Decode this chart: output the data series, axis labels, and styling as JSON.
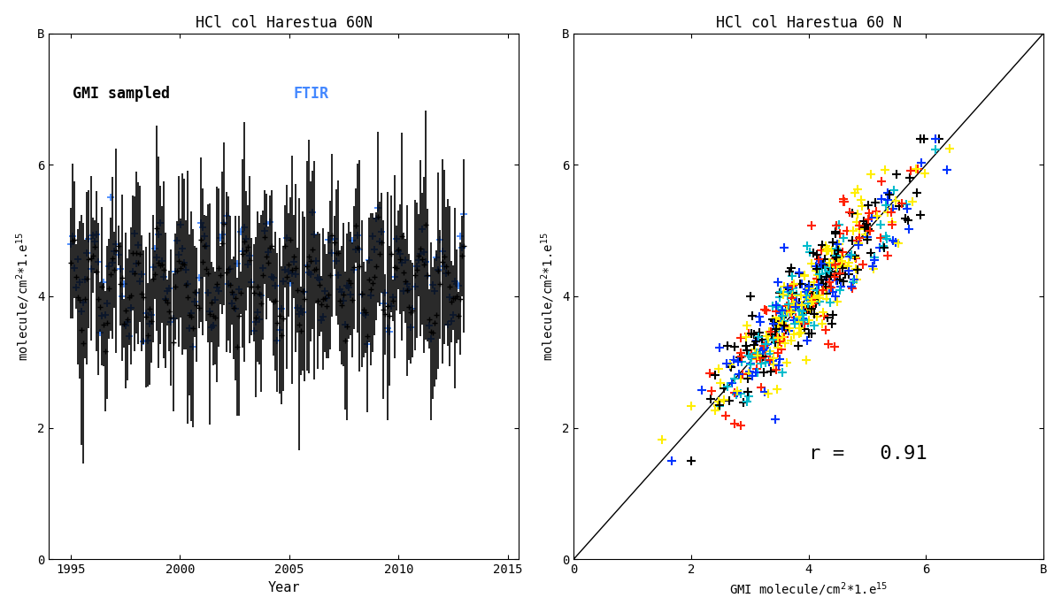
{
  "title_left": "HCl col Harestua 60N",
  "title_right": "HCl col Harestua 60 N",
  "ylabel": "molecule/cm$^2$*1.e$^{15}$",
  "xlabel_left": "Year",
  "xlabel_right": "GMI molecule/cm$^2$*1.e$^{15}$",
  "xlim_left": [
    1994.0,
    2015.5
  ],
  "ylim": [
    0,
    8
  ],
  "xlim_right": [
    0,
    8
  ],
  "xticks_left": [
    1995,
    2000,
    2005,
    2010,
    2015
  ],
  "yticks": [
    0,
    2,
    4,
    6,
    8
  ],
  "ytick_labels": [
    "0",
    "2",
    "4",
    "6",
    "B"
  ],
  "xtick_labels_right": [
    "0",
    "2",
    "4",
    "6",
    "B"
  ],
  "legend_gmi_label": "GMI sampled",
  "legend_ftir_label": "FTIR",
  "legend_gmi_color": "#000000",
  "legend_ftir_color": "#4488ff",
  "corr_text": "r =   0.91",
  "background_color": "white",
  "seed": 12345
}
